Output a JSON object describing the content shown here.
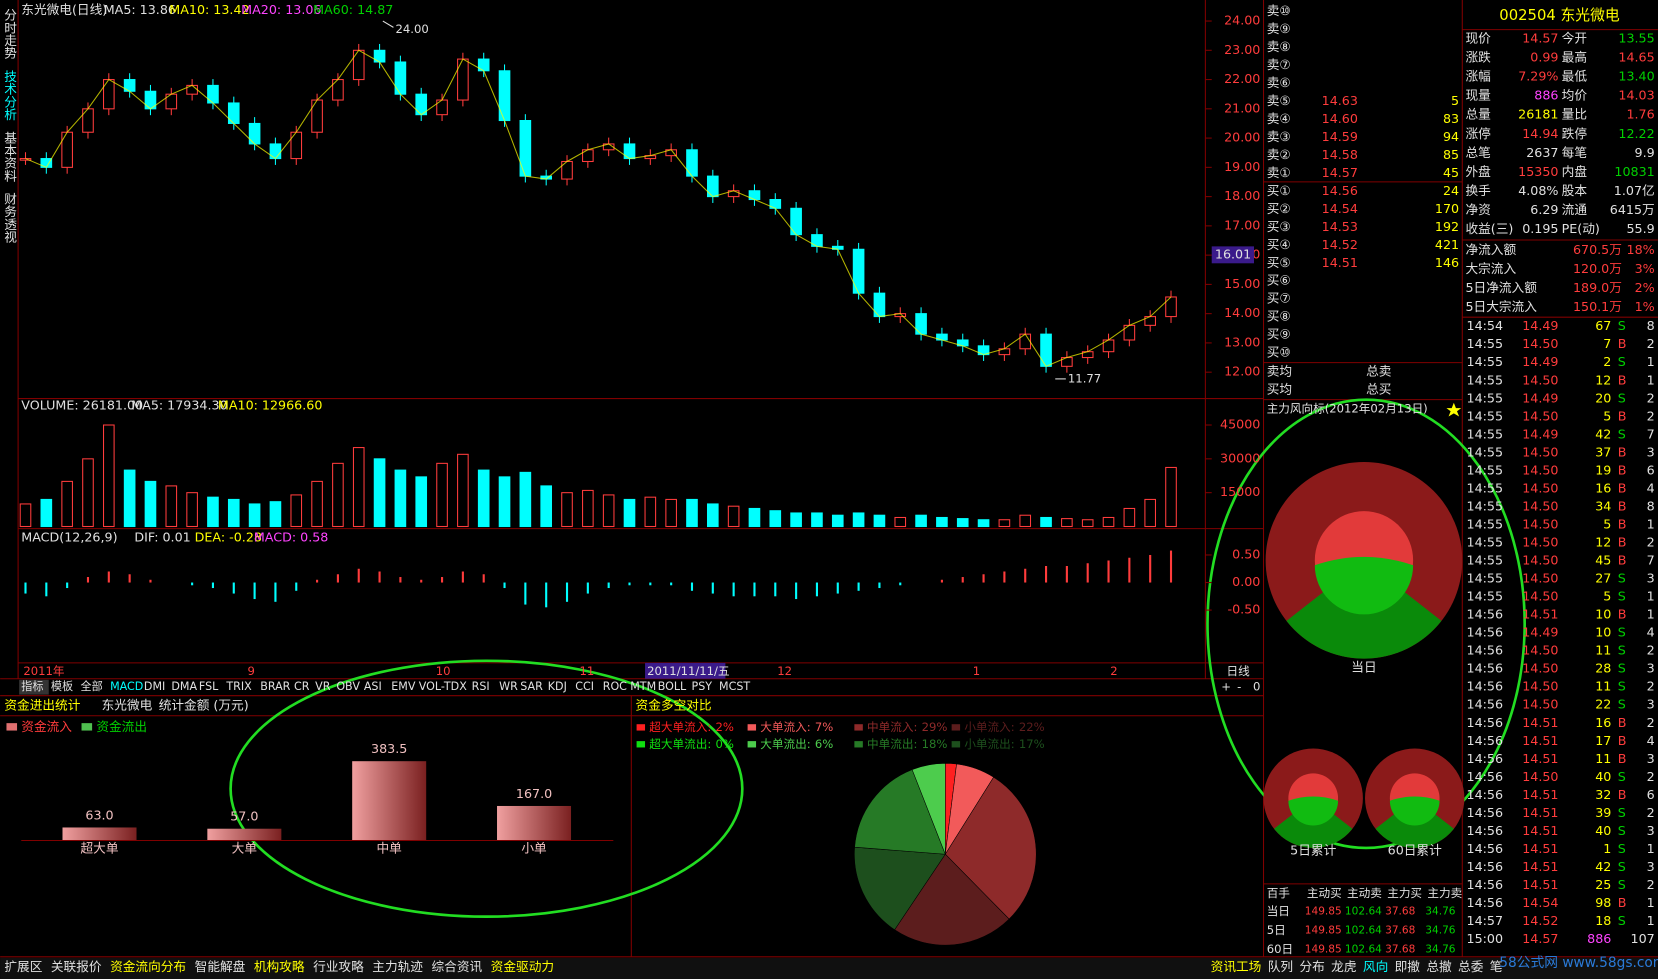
{
  "sidebar_tabs": [
    "分时走势",
    "技术分析",
    "基本资料",
    "财务透视"
  ],
  "price_chart": {
    "type": "candlestick",
    "title": "东光微电(日线)",
    "ma_labels": [
      "MA5: 13.86",
      "MA10: 13.42",
      "MA20: 13.06",
      "MA60: 14.87"
    ],
    "closes": [
      19.3,
      19.0,
      20.2,
      21.0,
      22.0,
      21.6,
      21.0,
      21.5,
      21.8,
      21.2,
      20.5,
      19.8,
      19.3,
      20.2,
      21.3,
      22.0,
      23.0,
      22.6,
      21.5,
      20.8,
      21.3,
      22.7,
      22.3,
      20.6,
      18.7,
      18.6,
      19.2,
      19.6,
      19.8,
      19.3,
      19.4,
      19.6,
      18.7,
      18.0,
      18.2,
      17.9,
      17.6,
      16.7,
      16.3,
      16.2,
      14.7,
      13.9,
      14.0,
      13.3,
      13.1,
      12.9,
      12.6,
      12.8,
      13.3,
      12.2,
      12.5,
      12.7,
      13.1,
      13.6,
      13.9,
      14.57
    ],
    "ylim": [
      11.17,
      24.43
    ],
    "yticks": [
      {
        "value": 12,
        "label": "12.00"
      },
      {
        "value": 13,
        "label": "13.00"
      },
      {
        "value": 14,
        "label": "14.00"
      },
      {
        "value": 15,
        "label": "15.00"
      },
      {
        "value": 16,
        "label": "16.00"
      },
      {
        "value": 17,
        "label": "17.00"
      },
      {
        "value": 18,
        "label": "18.00"
      },
      {
        "value": 19,
        "label": "19.00"
      },
      {
        "value": 20,
        "label": "20.00"
      },
      {
        "value": 21,
        "label": "21.00"
      },
      {
        "value": 22,
        "label": "22.00"
      },
      {
        "value": 23,
        "label": "23.00"
      },
      {
        "value": 24,
        "label": "24.00"
      }
    ],
    "high_mark": {
      "value": 24,
      "label": "24.00"
    },
    "low_mark": {
      "value": 11.77,
      "label": "11.77"
    },
    "cursor_price": {
      "value": 16.01,
      "label": "16.01"
    }
  },
  "volume_chart": {
    "type": "bar",
    "labels": [
      "VOLUME: 26181.00",
      "MA5: 17934.30",
      "MA10: 12966.60"
    ],
    "values": [
      10000,
      12000,
      20000,
      30000,
      45000,
      25000,
      20000,
      18000,
      15000,
      13000,
      12000,
      10000,
      11000,
      14000,
      20000,
      28000,
      35000,
      30000,
      25000,
      22000,
      28000,
      32000,
      25000,
      22000,
      24000,
      18000,
      15000,
      16000,
      14000,
      12000,
      13000,
      12000,
      12000,
      10000,
      9000,
      8000,
      7000,
      6000,
      6000,
      5000,
      6000,
      5000,
      4000,
      5000,
      4000,
      3500,
      3000,
      3000,
      5000,
      4000,
      3500,
      3000,
      4000,
      8000,
      12000,
      26181
    ],
    "ylim": [
      0,
      56250
    ],
    "yticks": [
      15000,
      30000,
      45000
    ]
  },
  "macd_chart": {
    "type": "bar",
    "labels": [
      "MACD(12,26,9)",
      "DIF: 0.01",
      "DEA: -0.28",
      "MACD: 0.58"
    ],
    "values": [
      -0.2,
      -0.25,
      -0.1,
      0.1,
      0.2,
      0.15,
      0.05,
      0,
      -0.05,
      -0.1,
      -0.2,
      -0.3,
      -0.35,
      -0.15,
      0.05,
      0.15,
      0.25,
      0.2,
      0.1,
      0.05,
      0.1,
      0.2,
      0.15,
      -0.1,
      -0.4,
      -0.45,
      -0.35,
      -0.2,
      -0.1,
      -0.05,
      -0.05,
      -0.05,
      -0.15,
      -0.2,
      -0.25,
      -0.25,
      -0.25,
      -0.3,
      -0.25,
      -0.2,
      -0.15,
      -0.1,
      -0.05,
      0,
      0.05,
      0.1,
      0.15,
      0.2,
      0.25,
      0.3,
      0.3,
      0.35,
      0.4,
      0.45,
      0.5,
      0.58
    ],
    "ylim": [
      -1.42,
      0.94
    ],
    "yticks": [
      {
        "value": 0.5,
        "label": "0.50"
      },
      {
        "value": 0,
        "label": "0.00"
      },
      {
        "value": -0.5,
        "label": "-0.50"
      }
    ]
  },
  "date_axis": [
    "2011年",
    "9",
    "10",
    "11",
    "2011/11/11/五",
    "12",
    "1",
    "2",
    "日线"
  ],
  "indicator_tabs": [
    "指标",
    "模板",
    "全部",
    "MACD",
    "DMI",
    "DMA",
    "FSL",
    "TRIX",
    "BRAR",
    "CR",
    "VR",
    "OBV",
    "ASI",
    "EMV",
    "VOL-TDX",
    "RSI",
    "WR",
    "SAR",
    "KDJ",
    "CCI",
    "ROC",
    "MTM",
    "BOLL",
    "PSY",
    "MCST"
  ],
  "zoom_buttons": [
    "+",
    "-",
    "0"
  ],
  "order_book": {
    "sell_labels": [
      "卖⑩",
      "卖⑨",
      "卖⑧",
      "卖⑦",
      "卖⑥",
      "卖⑤",
      "卖④",
      "卖③",
      "卖②",
      "卖①"
    ],
    "sell_quotes": [
      [
        "14.63",
        "5"
      ],
      [
        "14.60",
        "83"
      ],
      [
        "14.59",
        "94"
      ],
      [
        "14.58",
        "85"
      ],
      [
        "14.57",
        "45"
      ]
    ],
    "buy_labels": [
      "买①",
      "买②",
      "买③",
      "买④",
      "买⑤",
      "买⑥",
      "买⑦",
      "买⑧",
      "买⑨",
      "买⑩"
    ],
    "buy_quotes": [
      [
        "14.56",
        "24"
      ],
      [
        "14.54",
        "170"
      ],
      [
        "14.53",
        "192"
      ],
      [
        "14.52",
        "421"
      ],
      [
        "14.51",
        "146"
      ]
    ],
    "summary": [
      "卖均",
      "总卖",
      "买均",
      "总买"
    ]
  },
  "stock_header": "002504 东光微电",
  "info_rows": [
    [
      "现价",
      "14.57",
      "今开",
      "13.55"
    ],
    [
      "涨跌",
      "0.99",
      "最高",
      "14.65"
    ],
    [
      "涨幅",
      "7.29%",
      "最低",
      "13.40"
    ],
    [
      "现量",
      "886",
      "均价",
      "14.03"
    ],
    [
      "总量",
      "26181",
      "量比",
      "1.76"
    ],
    [
      "涨停",
      "14.94",
      "跌停",
      "12.22"
    ],
    [
      "总笔",
      "2637",
      "每笔",
      "9.9"
    ],
    [
      "外盘",
      "15350",
      "内盘",
      "10831"
    ],
    [
      "换手",
      "4.08%",
      "股本",
      "1.07亿"
    ],
    [
      "净资",
      "6.29",
      "流通",
      "6415万"
    ],
    [
      "收益(三)",
      "0.195",
      "PE(动)",
      "55.9"
    ]
  ],
  "flow_rows": [
    [
      "净流入额",
      "670.5万",
      "18%"
    ],
    [
      "大宗流入",
      "120.0万",
      "3%"
    ],
    [
      "5日净流入额",
      "189.0万",
      "2%"
    ],
    [
      "5日大宗流入",
      "150.1万",
      "1%"
    ]
  ],
  "trades": [
    [
      "14:54",
      "14.49",
      "67",
      "S",
      "8"
    ],
    [
      "14:55",
      "14.50",
      "7",
      "B",
      "2"
    ],
    [
      "14:55",
      "14.49",
      "2",
      "S",
      "1"
    ],
    [
      "14:55",
      "14.50",
      "12",
      "B",
      "1"
    ],
    [
      "14:55",
      "14.49",
      "20",
      "S",
      "2"
    ],
    [
      "14:55",
      "14.50",
      "5",
      "B",
      "2"
    ],
    [
      "14:55",
      "14.49",
      "42",
      "S",
      "7"
    ],
    [
      "14:55",
      "14.50",
      "37",
      "B",
      "3"
    ],
    [
      "14:55",
      "14.50",
      "19",
      "B",
      "6"
    ],
    [
      "14:55",
      "14.50",
      "16",
      "B",
      "4"
    ],
    [
      "14:55",
      "14.50",
      "34",
      "B",
      "8"
    ],
    [
      "14:55",
      "14.50",
      "5",
      "B",
      "1"
    ],
    [
      "14:55",
      "14.50",
      "12",
      "B",
      "2"
    ],
    [
      "14:55",
      "14.50",
      "45",
      "B",
      "7"
    ],
    [
      "14:55",
      "14.50",
      "27",
      "S",
      "3"
    ],
    [
      "14:55",
      "14.50",
      "5",
      "S",
      "1"
    ],
    [
      "14:56",
      "14.51",
      "10",
      "B",
      "1"
    ],
    [
      "14:56",
      "14.49",
      "10",
      "S",
      "4"
    ],
    [
      "14:56",
      "14.50",
      "11",
      "S",
      "2"
    ],
    [
      "14:56",
      "14.50",
      "28",
      "S",
      "3"
    ],
    [
      "14:56",
      "14.50",
      "11",
      "S",
      "2"
    ],
    [
      "14:56",
      "14.50",
      "22",
      "S",
      "3"
    ],
    [
      "14:56",
      "14.51",
      "16",
      "B",
      "2"
    ],
    [
      "14:56",
      "14.51",
      "17",
      "B",
      "4"
    ],
    [
      "14:56",
      "14.51",
      "11",
      "B",
      "3"
    ],
    [
      "14:56",
      "14.50",
      "40",
      "S",
      "2"
    ],
    [
      "14:56",
      "14.51",
      "32",
      "B",
      "6"
    ],
    [
      "14:56",
      "14.51",
      "39",
      "S",
      "2"
    ],
    [
      "14:56",
      "14.51",
      "40",
      "S",
      "3"
    ],
    [
      "14:56",
      "14.51",
      "1",
      "S",
      "1"
    ],
    [
      "14:56",
      "14.51",
      "42",
      "S",
      "3"
    ],
    [
      "14:56",
      "14.51",
      "25",
      "S",
      "2"
    ],
    [
      "14:56",
      "14.54",
      "98",
      "B",
      "1"
    ],
    [
      "14:57",
      "14.52",
      "18",
      "S",
      "1"
    ],
    [
      "15:00",
      "14.57",
      "886",
      "107"
    ]
  ],
  "wind_vane": {
    "title": "主力风向标(2012年02月13日)",
    "donut_labels": [
      "当日",
      "5日累计",
      "60日累计"
    ],
    "table": {
      "header": [
        "百手",
        "主动买",
        "主动卖",
        "主力买",
        "主力卖"
      ],
      "rows": [
        [
          "当日",
          "149.85",
          "102.64",
          "37.68",
          "34.76"
        ],
        [
          "5日",
          "149.85",
          "102.64",
          "37.68",
          "34.76"
        ],
        [
          "60日",
          "149.85",
          "102.64",
          "37.68",
          "34.76"
        ]
      ]
    }
  },
  "fund_stats": {
    "type": "bar",
    "title": "资金进出统计",
    "stock": "东光微电",
    "unit": "统计金额 (万元)",
    "legend": [
      "资金流入",
      "资金流出"
    ],
    "categories": [
      "超大单",
      "大单",
      "中单",
      "小单"
    ],
    "values": [
      63.0,
      57.0,
      383.5,
      167.0
    ],
    "value_labels": [
      "63.0",
      "57.0",
      "383.5",
      "167.0"
    ]
  },
  "fund_compare": {
    "type": "pie",
    "title": "资金多空对比",
    "slices": [
      {
        "name": "超大单流入:",
        "value": 2,
        "value_label": "2%",
        "color": "#ff2020"
      },
      {
        "name": "大单流入:",
        "value": 7,
        "value_label": "7%",
        "color": "#f25a5a"
      },
      {
        "name": "中单流入:",
        "value": 29,
        "value_label": "29%",
        "color": "#8e2a2a"
      },
      {
        "name": "小单流入:",
        "value": 22,
        "value_label": "22%",
        "color": "#5c1d1d"
      },
      {
        "name": "小单流出:",
        "value": 17,
        "value_label": "17%",
        "color": "#1d4f1d"
      },
      {
        "name": "中单流出:",
        "value": 18,
        "value_label": "18%",
        "color": "#267a26"
      },
      {
        "name": "大单流出:",
        "value": 6,
        "value_label": "6%",
        "color": "#4dcc4d"
      },
      {
        "name": "超大单流出:",
        "value": 0,
        "value_label": "0%",
        "color": "#10e010"
      }
    ]
  },
  "bottom_tabs": [
    "扩展区",
    "关联报价",
    "资金流向分布",
    "智能解盘",
    "机构攻略",
    "行业攻略",
    "主力轨迹",
    "综合资讯",
    "资金驱动力"
  ],
  "right_tabs": [
    "资讯工场",
    "队列",
    "分布",
    "龙虎",
    "风向",
    "即撤",
    "总撤",
    "总委",
    "笔"
  ],
  "watermark": "58公式网 www.58gs.com"
}
